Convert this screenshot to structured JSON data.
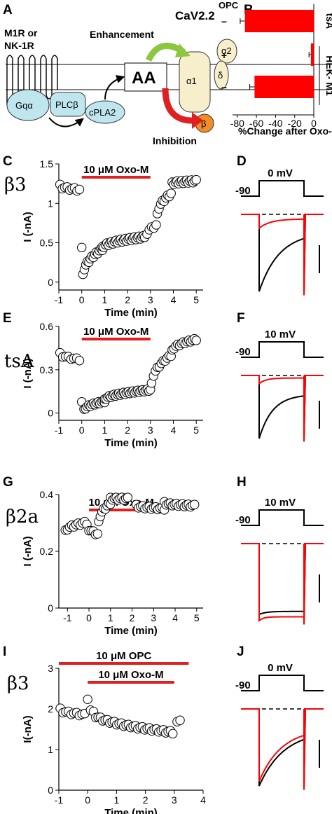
{
  "panel_letters": {
    "A": "A",
    "B": "B",
    "C": "C",
    "D": "D",
    "E": "E",
    "F": "F",
    "G": "G",
    "H": "H",
    "I": "I",
    "J": "J"
  },
  "schematic": {
    "receptor_line1": "M1R or",
    "receptor_line2": "NK-1R",
    "gq": "Gqα",
    "plc": "PLCβ",
    "cpla2": "cPLA2",
    "aa": "AA",
    "channel_title": "CaV2.2",
    "enhancement": "Enhancement",
    "inhibition": "Inhibition",
    "alpha1": "α1",
    "alpha2": "α2",
    "delta": "δ",
    "beta": "β",
    "colors": {
      "enhancement": "#8dc63f",
      "inhibition": "#e02020",
      "gq": "#bfe6ee",
      "channel": "#f7efcc",
      "beta": "#f28c28"
    }
  },
  "labels": {
    "oxo_m": "10 μM Oxo-M",
    "opc": "10 μM OPC",
    "time_axis": "Time (min)",
    "current_axis": "I (-nA)",
    "current_axis_j": "I(-nA)",
    "hold": "-90",
    "step_0": "0 mV",
    "step_10": "10 mV",
    "beta3": "β3",
    "tsa": "tsA",
    "beta2a": "β2a"
  },
  "chart_data": [
    {
      "panel": "B",
      "type": "bar",
      "orientation": "horizontal",
      "xlabel": "%Change after Oxo-M",
      "xlim": [
        -85,
        0
      ],
      "xticks": [
        -80,
        -60,
        -40,
        -20,
        0
      ],
      "row_label_header": "OPC",
      "categories": [
        "−",
        "+",
        "−"
      ],
      "values": [
        -72,
        -3,
        -62
      ],
      "errors": [
        5,
        2,
        5
      ],
      "group_labels": [
        "tsA",
        "HEK- M1"
      ],
      "color": "#ff0000"
    },
    {
      "panel": "C",
      "type": "scatter",
      "label": "β3",
      "xlabel": "Time (min)",
      "ylabel": "I (-nA)",
      "xlim": [
        -1,
        5.3
      ],
      "ylim": [
        -0.1,
        1.5
      ],
      "xticks": [
        -1,
        0,
        1,
        2,
        3,
        4,
        5
      ],
      "yticks": [
        0.0,
        0.5,
        1.0,
        1.5
      ],
      "drug_bar": {
        "label": "10 μM Oxo-M",
        "from": 0,
        "to": 3
      },
      "segments": [
        {
          "t0": -0.95,
          "t1": -0.1,
          "n": 9,
          "y0": 1.22,
          "y1": 1.17
        },
        {
          "t0": 0.0,
          "t1": 0.0,
          "n": 1,
          "y0": 0.42,
          "y1": 0.42
        },
        {
          "t0": 0.05,
          "t1": 0.9,
          "n": 14,
          "y0": 0.08,
          "y1": 0.42
        },
        {
          "t0": 0.9,
          "t1": 2.7,
          "n": 28,
          "y0": 0.43,
          "y1": 0.57
        },
        {
          "t0": 2.75,
          "t1": 3.25,
          "n": 6,
          "y0": 0.55,
          "y1": 0.72
        },
        {
          "t0": 3.3,
          "t1": 3.9,
          "n": 9,
          "y0": 0.85,
          "y1": 1.12
        },
        {
          "t0": 3.95,
          "t1": 5.0,
          "n": 16,
          "y0": 1.25,
          "y1": 1.28
        }
      ]
    },
    {
      "panel": "E",
      "type": "scatter",
      "label": "tsA",
      "xlabel": "Time (min)",
      "ylabel": "I (-nA)",
      "xlim": [
        -1,
        5.3
      ],
      "ylim": [
        -0.05,
        0.6
      ],
      "xticks": [
        -1,
        0,
        1,
        2,
        3,
        4,
        5
      ],
      "yticks": [
        0.0,
        0.3,
        0.6
      ],
      "drug_bar": {
        "label": "10 μM Oxo-M",
        "from": 0,
        "to": 3
      },
      "segments": [
        {
          "t0": -0.95,
          "t1": -0.1,
          "n": 8,
          "y0": 0.41,
          "y1": 0.37
        },
        {
          "t0": 0.0,
          "t1": 0.0,
          "n": 1,
          "y0": 0.07,
          "y1": 0.07
        },
        {
          "t0": 0.1,
          "t1": 1.0,
          "n": 14,
          "y0": 0.02,
          "y1": 0.08
        },
        {
          "t0": 1.0,
          "t1": 3.0,
          "n": 30,
          "y0": 0.09,
          "y1": 0.16
        },
        {
          "t0": 3.05,
          "t1": 3.9,
          "n": 11,
          "y0": 0.2,
          "y1": 0.4
        },
        {
          "t0": 3.95,
          "t1": 5.0,
          "n": 14,
          "y0": 0.43,
          "y1": 0.51
        }
      ]
    },
    {
      "panel": "G",
      "type": "scatter",
      "label": "β2a",
      "xlabel": "Time (min)",
      "ylabel": "I (-nA)",
      "xlim": [
        -1.4,
        5.3
      ],
      "ylim": [
        0.0,
        0.4
      ],
      "xticks": [
        -1,
        0,
        1,
        2,
        3,
        4,
        5
      ],
      "yticks": [
        0.0,
        0.2,
        0.4
      ],
      "drug_bar": {
        "label": "10 μM Oxo-M",
        "from": 0,
        "to": 3
      },
      "segments": [
        {
          "t0": -1.1,
          "t1": -0.2,
          "n": 10,
          "y0": 0.27,
          "y1": 0.3
        },
        {
          "t0": -0.1,
          "t1": 0.4,
          "n": 6,
          "y0": 0.29,
          "y1": 0.26
        },
        {
          "t0": 0.45,
          "t1": 1.0,
          "n": 8,
          "y0": 0.3,
          "y1": 0.37
        },
        {
          "t0": 1.0,
          "t1": 1.8,
          "n": 10,
          "y0": 0.385,
          "y1": 0.385
        },
        {
          "t0": 2.2,
          "t1": 3.5,
          "n": 14,
          "y0": 0.36,
          "y1": 0.35
        },
        {
          "t0": 3.5,
          "t1": 4.9,
          "n": 16,
          "y0": 0.37,
          "y1": 0.36
        }
      ]
    },
    {
      "panel": "I",
      "type": "scatter",
      "label": "β3",
      "xlabel": "Time (min)",
      "ylabel": "I(-nA)",
      "xlim": [
        -1,
        4
      ],
      "ylim": [
        0,
        3
      ],
      "xticks": [
        -1,
        0,
        1,
        2,
        3,
        4
      ],
      "yticks": [
        0,
        1,
        2,
        3
      ],
      "drug_bars": [
        {
          "label": "10 μM OPC",
          "from": -1,
          "to": 3.5
        },
        {
          "label": "10 μM Oxo-M",
          "from": 0,
          "to": 3
        }
      ],
      "segments": [
        {
          "t0": -0.95,
          "t1": -0.1,
          "n": 10,
          "y0": 1.98,
          "y1": 1.85
        },
        {
          "t0": 0.0,
          "t1": 0.1,
          "n": 2,
          "y0": 2.2,
          "y1": 2.0
        },
        {
          "t0": 0.2,
          "t1": 2.95,
          "n": 35,
          "y0": 1.9,
          "y1": 1.42
        },
        {
          "t0": 3.1,
          "t1": 3.2,
          "n": 2,
          "y0": 1.65,
          "y1": 1.75
        }
      ]
    },
    {
      "panel": "D",
      "type": "line",
      "step_label": "0 mV",
      "hold_label": "-90",
      "series": [
        {
          "name": "",
          "color": "#000000",
          "peak": 1.0,
          "late": 0.23,
          "tau": 0.45
        },
        {
          "name": "",
          "color": "#ff0000",
          "peak": 0.18,
          "late": 0.06,
          "tau": 0.25
        }
      ]
    },
    {
      "panel": "F",
      "type": "line",
      "step_label": "10 mV",
      "hold_label": "-90",
      "series": [
        {
          "name": "",
          "color": "#000000",
          "peak": 1.0,
          "late": 0.3,
          "tau": 0.3
        },
        {
          "name": "",
          "color": "#ff0000",
          "peak": 0.13,
          "late": 0.04,
          "tau": 0.15
        }
      ]
    },
    {
      "panel": "H",
      "type": "line",
      "step_label": "10 mV",
      "hold_label": "-90",
      "series": [
        {
          "name": "",
          "color": "#000000",
          "peak": 0.92,
          "late": 0.88,
          "tau": 0.15
        },
        {
          "name": "",
          "color": "#ff0000",
          "peak": 1.0,
          "late": 0.95,
          "tau": 0.1
        }
      ]
    },
    {
      "panel": "J",
      "type": "line",
      "step_label": "0 mV",
      "hold_label": "-90",
      "series": [
        {
          "name": "",
          "color": "#000000",
          "peak": 1.0,
          "late": 0.28,
          "tau": 0.55
        },
        {
          "name": "",
          "color": "#ff0000",
          "peak": 0.94,
          "late": 0.25,
          "tau": 0.5
        }
      ]
    }
  ]
}
